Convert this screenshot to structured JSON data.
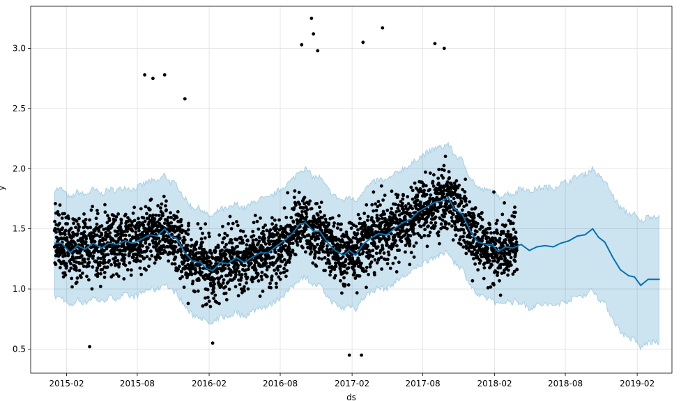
{
  "chart_data": {
    "type": "scatter",
    "title": "",
    "xlabel": "ds",
    "ylabel": "y",
    "x_range": [
      "2014-11-01",
      "2019-05-01"
    ],
    "ylim": [
      0.3,
      3.35
    ],
    "grid": true,
    "x_ticks": [
      "2015-02",
      "2015-08",
      "2016-02",
      "2016-08",
      "2017-02",
      "2017-08",
      "2018-02",
      "2018-08",
      "2019-02"
    ],
    "y_ticks": [
      "0.5",
      "1.0",
      "1.5",
      "2.0",
      "2.5",
      "3.0"
    ],
    "history": {
      "start": "2015-01-01",
      "end": "2018-03-31"
    },
    "forecast_end": "2019-03-31",
    "colors": {
      "points": "#000000",
      "trend": "#0072B2",
      "interval_fill": "#0072B2",
      "interval_edge": "#0072B2",
      "grid": "#e0e0e0"
    },
    "trend": [
      [
        "2015-01-01",
        1.38
      ],
      [
        "2015-01-20",
        1.38
      ],
      [
        "2015-02-10",
        1.3
      ],
      [
        "2015-03-01",
        1.36
      ],
      [
        "2015-03-20",
        1.33
      ],
      [
        "2015-04-10",
        1.38
      ],
      [
        "2015-05-01",
        1.34
      ],
      [
        "2015-05-20",
        1.38
      ],
      [
        "2015-06-10",
        1.37
      ],
      [
        "2015-07-01",
        1.4
      ],
      [
        "2015-07-20",
        1.38
      ],
      [
        "2015-08-10",
        1.41
      ],
      [
        "2015-09-01",
        1.45
      ],
      [
        "2015-09-20",
        1.44
      ],
      [
        "2015-10-10",
        1.5
      ],
      [
        "2015-10-25",
        1.44
      ],
      [
        "2015-11-10",
        1.42
      ],
      [
        "2015-12-01",
        1.3
      ],
      [
        "2015-12-20",
        1.23
      ],
      [
        "2016-01-10",
        1.22
      ],
      [
        "2016-01-25",
        1.17
      ],
      [
        "2016-02-10",
        1.15
      ],
      [
        "2016-03-01",
        1.22
      ],
      [
        "2016-03-20",
        1.21
      ],
      [
        "2016-04-10",
        1.26
      ],
      [
        "2016-05-01",
        1.22
      ],
      [
        "2016-05-20",
        1.26
      ],
      [
        "2016-06-10",
        1.3
      ],
      [
        "2016-07-01",
        1.3
      ],
      [
        "2016-07-20",
        1.35
      ],
      [
        "2016-08-10",
        1.4
      ],
      [
        "2016-09-01",
        1.46
      ],
      [
        "2016-09-20",
        1.54
      ],
      [
        "2016-10-05",
        1.55
      ],
      [
        "2016-10-25",
        1.48
      ],
      [
        "2016-11-10",
        1.48
      ],
      [
        "2016-12-01",
        1.38
      ],
      [
        "2016-12-20",
        1.32
      ],
      [
        "2017-01-10",
        1.28
      ],
      [
        "2017-01-25",
        1.32
      ],
      [
        "2017-02-10",
        1.28
      ],
      [
        "2017-03-01",
        1.37
      ],
      [
        "2017-03-20",
        1.42
      ],
      [
        "2017-04-10",
        1.46
      ],
      [
        "2017-05-01",
        1.45
      ],
      [
        "2017-05-20",
        1.5
      ],
      [
        "2017-06-10",
        1.55
      ],
      [
        "2017-07-01",
        1.58
      ],
      [
        "2017-07-20",
        1.64
      ],
      [
        "2017-08-10",
        1.68
      ],
      [
        "2017-09-01",
        1.72
      ],
      [
        "2017-09-20",
        1.73
      ],
      [
        "2017-10-05",
        1.76
      ],
      [
        "2017-10-20",
        1.67
      ],
      [
        "2017-11-10",
        1.62
      ],
      [
        "2017-12-01",
        1.48
      ],
      [
        "2017-12-20",
        1.39
      ],
      [
        "2018-01-10",
        1.37
      ],
      [
        "2018-01-25",
        1.37
      ],
      [
        "2018-02-10",
        1.31
      ],
      [
        "2018-03-01",
        1.35
      ],
      [
        "2018-03-20",
        1.34
      ],
      [
        "2018-04-10",
        1.37
      ],
      [
        "2018-05-01",
        1.32
      ],
      [
        "2018-05-20",
        1.35
      ],
      [
        "2018-06-10",
        1.36
      ],
      [
        "2018-07-01",
        1.35
      ],
      [
        "2018-07-20",
        1.38
      ],
      [
        "2018-08-10",
        1.4
      ],
      [
        "2018-09-01",
        1.44
      ],
      [
        "2018-09-20",
        1.45
      ],
      [
        "2018-10-10",
        1.5
      ],
      [
        "2018-10-25",
        1.43
      ],
      [
        "2018-11-10",
        1.39
      ],
      [
        "2018-12-01",
        1.26
      ],
      [
        "2018-12-20",
        1.16
      ],
      [
        "2019-01-10",
        1.11
      ],
      [
        "2019-01-25",
        1.1
      ],
      [
        "2019-02-10",
        1.03
      ],
      [
        "2019-03-01",
        1.08
      ],
      [
        "2019-03-31",
        1.08
      ]
    ],
    "interval_halfwidth": {
      "history": 0.45,
      "forecast": [
        [
          "2018-04-01",
          0.48
        ],
        [
          "2018-09-01",
          0.5
        ],
        [
          "2019-03-31",
          0.53
        ]
      ]
    },
    "observed_points_sample": [
      [
        "2015-08-20",
        2.78
      ],
      [
        "2015-09-10",
        2.75
      ],
      [
        "2015-10-10",
        2.78
      ],
      [
        "2015-12-01",
        2.58
      ],
      [
        "2016-10-20",
        3.25
      ],
      [
        "2016-10-25",
        3.12
      ],
      [
        "2016-09-25",
        3.03
      ],
      [
        "2016-11-05",
        2.98
      ],
      [
        "2017-03-01",
        3.05
      ],
      [
        "2017-04-20",
        3.17
      ],
      [
        "2017-09-01",
        3.04
      ],
      [
        "2017-09-25",
        3.0
      ],
      [
        "2017-01-25",
        0.45
      ],
      [
        "2017-02-25",
        0.45
      ],
      [
        "2016-02-10",
        0.55
      ],
      [
        "2015-04-01",
        0.52
      ]
    ]
  }
}
